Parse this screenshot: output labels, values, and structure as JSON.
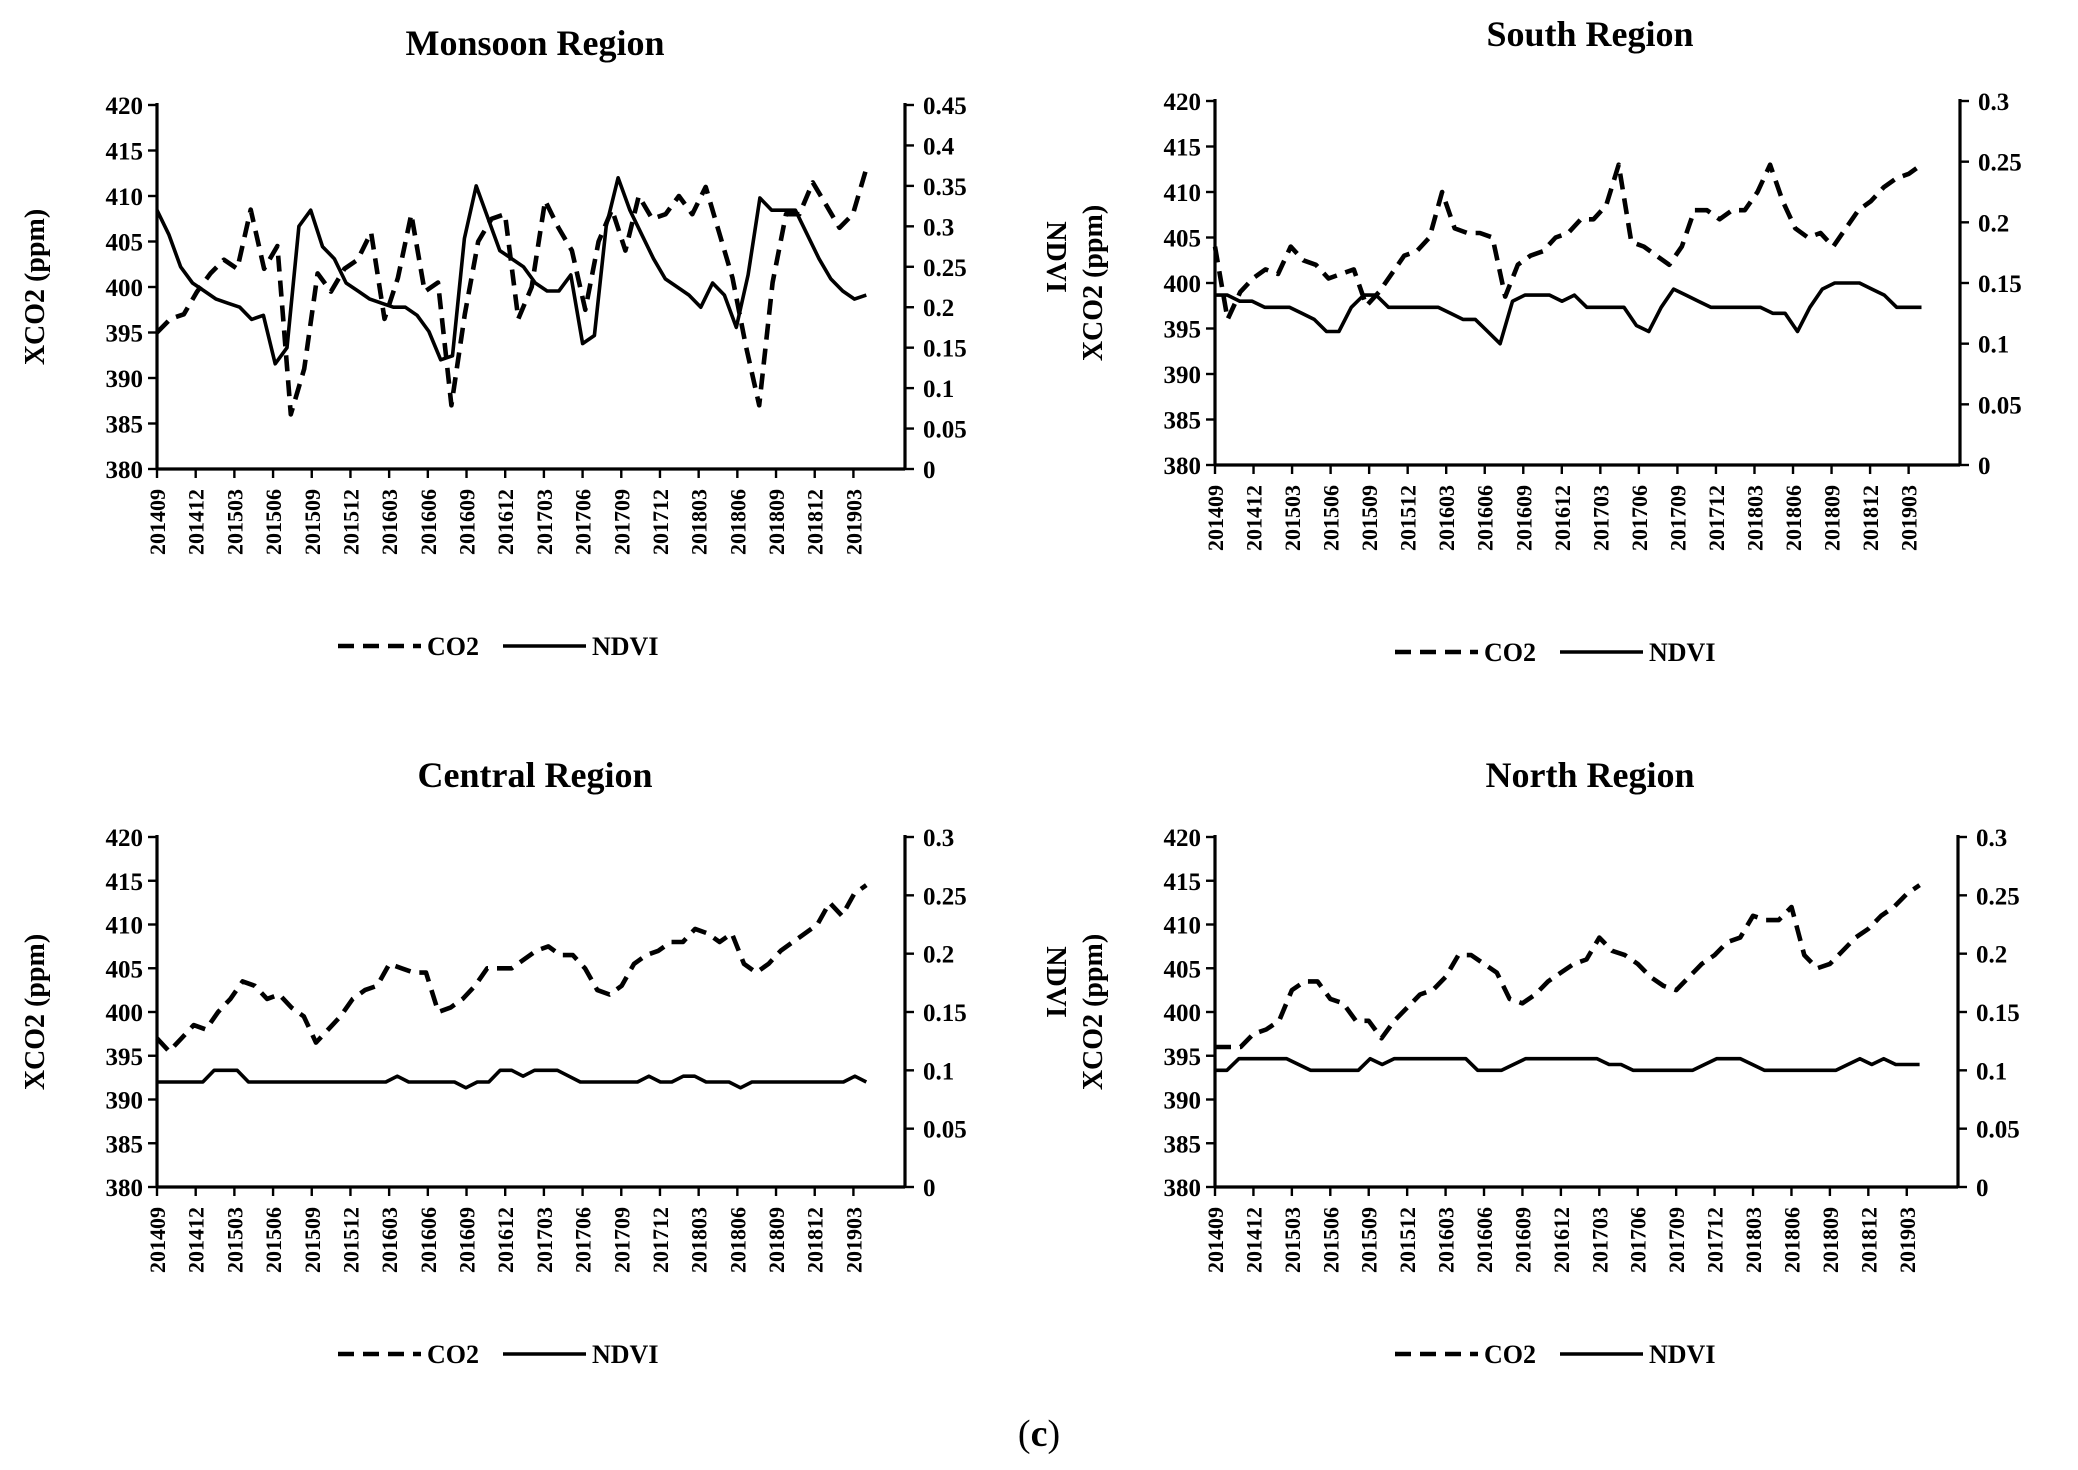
{
  "caption": {
    "open": "(",
    "label": "c",
    "close": ")"
  },
  "x_labels": [
    "201409",
    "201412",
    "201503",
    "201506",
    "201509",
    "201512",
    "201603",
    "201606",
    "201609",
    "201612",
    "201703",
    "201706",
    "201709",
    "201712",
    "201803",
    "201806",
    "201809",
    "201812",
    "201903"
  ],
  "chart_data": [
    {
      "type": "line",
      "title": "Monsoon Region",
      "xlabel": "",
      "ylabel": "XCO2 (ppm)",
      "y2label": "NDVI",
      "ylim": [
        380,
        420
      ],
      "y2lim": [
        0,
        0.45
      ],
      "yticks": [
        "380",
        "385",
        "390",
        "395",
        "400",
        "405",
        "410",
        "415",
        "420"
      ],
      "y2ticks": [
        "0",
        "0.05",
        "0.1",
        "0.15",
        "0.2",
        "0.25",
        "0.3",
        "0.35",
        "0.4",
        "0.45"
      ],
      "x_start": "201409",
      "x_step_months": 1,
      "legend": [
        "CO2",
        "NDVI"
      ],
      "series": [
        {
          "name": "CO2",
          "style": "dashed",
          "axis": "left",
          "values": [
            395,
            396.5,
            397,
            399.5,
            401.5,
            403,
            402,
            408.5,
            402,
            404.5,
            386,
            391,
            401.5,
            399.5,
            402,
            403,
            406,
            396.5,
            401,
            408,
            399.5,
            400.5,
            387,
            397,
            405,
            407.5,
            408,
            396.5,
            400,
            409.5,
            406.5,
            404,
            397.5,
            405,
            408.5,
            404,
            410,
            407.5,
            408,
            410,
            408,
            411,
            406,
            401,
            393.5,
            387,
            400.5,
            408,
            408,
            411.5,
            409,
            406.5,
            408,
            413
          ]
        },
        {
          "name": "NDVI",
          "style": "solid",
          "axis": "right",
          "values": [
            0.32,
            0.29,
            0.25,
            0.23,
            0.22,
            0.21,
            0.205,
            0.2,
            0.185,
            0.19,
            0.13,
            0.15,
            0.3,
            0.32,
            0.275,
            0.26,
            0.23,
            0.22,
            0.21,
            0.205,
            0.2,
            0.2,
            0.19,
            0.17,
            0.135,
            0.14,
            0.285,
            0.35,
            0.31,
            0.27,
            0.26,
            0.25,
            0.23,
            0.22,
            0.22,
            0.24,
            0.155,
            0.165,
            0.3,
            0.36,
            0.32,
            0.29,
            0.26,
            0.235,
            0.225,
            0.215,
            0.2,
            0.23,
            0.215,
            0.175,
            0.24,
            0.335,
            0.32,
            0.32,
            0.32,
            0.29,
            0.26,
            0.235,
            0.22,
            0.21,
            0.215
          ]
        }
      ]
    },
    {
      "type": "line",
      "title": "South Region",
      "xlabel": "",
      "ylabel": "XCO2 (ppm)",
      "y2label": "NDVI",
      "ylim": [
        380,
        420
      ],
      "y2lim": [
        0,
        0.3
      ],
      "yticks": [
        "380",
        "385",
        "390",
        "395",
        "400",
        "405",
        "410",
        "415",
        "420"
      ],
      "y2ticks": [
        "0",
        "0.05",
        "0.1",
        "0.15",
        "0.2",
        "0.25",
        "0.3"
      ],
      "x_start": "201409",
      "x_step_months": 1,
      "legend": [
        "CO2",
        "NDVI"
      ],
      "series": [
        {
          "name": "CO2",
          "style": "dashed",
          "axis": "left",
          "values": [
            404,
            396,
            399,
            400.5,
            401.5,
            401,
            404,
            402.5,
            402,
            400.5,
            401,
            401.5,
            397.5,
            399,
            401,
            403,
            403.5,
            405,
            410,
            406,
            405.5,
            405.5,
            405,
            398.5,
            402,
            403,
            403.5,
            405,
            405.5,
            407,
            407,
            408.5,
            413,
            404.5,
            404,
            403,
            402,
            404,
            408,
            408,
            407,
            408,
            408,
            410,
            413,
            409,
            406,
            405,
            405.5,
            404,
            406,
            408,
            409,
            410.5,
            411.5,
            412,
            413
          ]
        },
        {
          "name": "NDVI",
          "style": "solid",
          "axis": "right",
          "values": [
            0.14,
            0.14,
            0.135,
            0.135,
            0.13,
            0.13,
            0.13,
            0.125,
            0.12,
            0.11,
            0.11,
            0.13,
            0.14,
            0.14,
            0.13,
            0.13,
            0.13,
            0.13,
            0.13,
            0.125,
            0.12,
            0.12,
            0.11,
            0.1,
            0.135,
            0.14,
            0.14,
            0.14,
            0.135,
            0.14,
            0.13,
            0.13,
            0.13,
            0.13,
            0.115,
            0.11,
            0.13,
            0.145,
            0.14,
            0.135,
            0.13,
            0.13,
            0.13,
            0.13,
            0.13,
            0.125,
            0.125,
            0.11,
            0.13,
            0.145,
            0.15,
            0.15,
            0.15,
            0.145,
            0.14,
            0.13,
            0.13,
            0.13
          ]
        }
      ]
    },
    {
      "type": "line",
      "title": "Central Region",
      "xlabel": "",
      "ylabel": "XCO2 (ppm)",
      "y2label": "NDVI",
      "ylim": [
        380,
        420
      ],
      "y2lim": [
        0,
        0.3
      ],
      "yticks": [
        "380",
        "385",
        "390",
        "395",
        "400",
        "405",
        "410",
        "415",
        "420"
      ],
      "y2ticks": [
        "0",
        "0.05",
        "0.1",
        "0.15",
        "0.2",
        "0.25",
        "0.3"
      ],
      "x_start": "201409",
      "x_step_months": 1,
      "legend": [
        "CO2",
        "NDVI"
      ],
      "series": [
        {
          "name": "CO2",
          "style": "dashed",
          "axis": "left",
          "values": [
            397,
            395.5,
            397,
            398.5,
            398,
            400,
            401.5,
            403.5,
            403,
            401.5,
            402,
            400.5,
            399.5,
            396.5,
            398,
            399.5,
            401.5,
            402.5,
            403,
            405.5,
            405,
            404.5,
            404.5,
            400,
            400.5,
            401.5,
            403,
            405,
            405,
            405,
            406,
            407,
            407.5,
            406.5,
            406.5,
            405,
            402.5,
            402,
            403,
            405.5,
            406.5,
            407,
            408,
            408,
            409.5,
            409,
            408,
            409,
            405.5,
            404.5,
            405.5,
            407,
            408,
            409,
            410,
            412.5,
            411,
            413.5,
            414.5
          ]
        },
        {
          "name": "NDVI",
          "style": "solid",
          "axis": "right",
          "values": [
            0.09,
            0.09,
            0.09,
            0.09,
            0.09,
            0.1,
            0.1,
            0.1,
            0.09,
            0.09,
            0.09,
            0.09,
            0.09,
            0.09,
            0.09,
            0.09,
            0.09,
            0.09,
            0.09,
            0.09,
            0.09,
            0.095,
            0.09,
            0.09,
            0.09,
            0.09,
            0.09,
            0.085,
            0.09,
            0.09,
            0.1,
            0.1,
            0.095,
            0.1,
            0.1,
            0.1,
            0.095,
            0.09,
            0.09,
            0.09,
            0.09,
            0.09,
            0.09,
            0.095,
            0.09,
            0.09,
            0.095,
            0.095,
            0.09,
            0.09,
            0.09,
            0.085,
            0.09,
            0.09,
            0.09,
            0.09,
            0.09,
            0.09,
            0.09,
            0.09,
            0.09,
            0.095,
            0.09
          ]
        }
      ]
    },
    {
      "type": "line",
      "title": "North Region",
      "xlabel": "",
      "ylabel": "XCO2 (ppm)",
      "y2label": "NDVI",
      "ylim": [
        380,
        420
      ],
      "y2lim": [
        0,
        0.3
      ],
      "yticks": [
        "380",
        "385",
        "390",
        "395",
        "400",
        "405",
        "410",
        "415",
        "420"
      ],
      "y2ticks": [
        "0",
        "0.05",
        "0.1",
        "0.15",
        "0.2",
        "0.25",
        "0.3"
      ],
      "x_start": "201409",
      "x_step_months": 1,
      "legend": [
        "CO2",
        "NDVI"
      ],
      "series": [
        {
          "name": "CO2",
          "style": "dashed",
          "axis": "left",
          "values": [
            396,
            396,
            396,
            397.5,
            398,
            399,
            402.5,
            403.5,
            403.5,
            401.5,
            401,
            399,
            399,
            397,
            399,
            400.5,
            402,
            402.5,
            404,
            406.5,
            406.5,
            405.5,
            404.5,
            401.5,
            401,
            402,
            403.5,
            404.5,
            405.5,
            406,
            408.5,
            407,
            406.5,
            405.5,
            404,
            403,
            402.5,
            404,
            405.5,
            406.5,
            408,
            408.5,
            411,
            410.5,
            410.5,
            412,
            406.5,
            405,
            405.5,
            407,
            408.5,
            409.5,
            411,
            412,
            413.5,
            414.5
          ]
        },
        {
          "name": "NDVI",
          "style": "solid",
          "axis": "right",
          "values": [
            0.1,
            0.1,
            0.11,
            0.11,
            0.11,
            0.11,
            0.11,
            0.105,
            0.1,
            0.1,
            0.1,
            0.1,
            0.1,
            0.11,
            0.105,
            0.11,
            0.11,
            0.11,
            0.11,
            0.11,
            0.11,
            0.11,
            0.1,
            0.1,
            0.1,
            0.105,
            0.11,
            0.11,
            0.11,
            0.11,
            0.11,
            0.11,
            0.11,
            0.105,
            0.105,
            0.1,
            0.1,
            0.1,
            0.1,
            0.1,
            0.1,
            0.105,
            0.11,
            0.11,
            0.11,
            0.105,
            0.1,
            0.1,
            0.1,
            0.1,
            0.1,
            0.1,
            0.1,
            0.105,
            0.11,
            0.105,
            0.11,
            0.105,
            0.105,
            0.105
          ]
        }
      ]
    }
  ]
}
